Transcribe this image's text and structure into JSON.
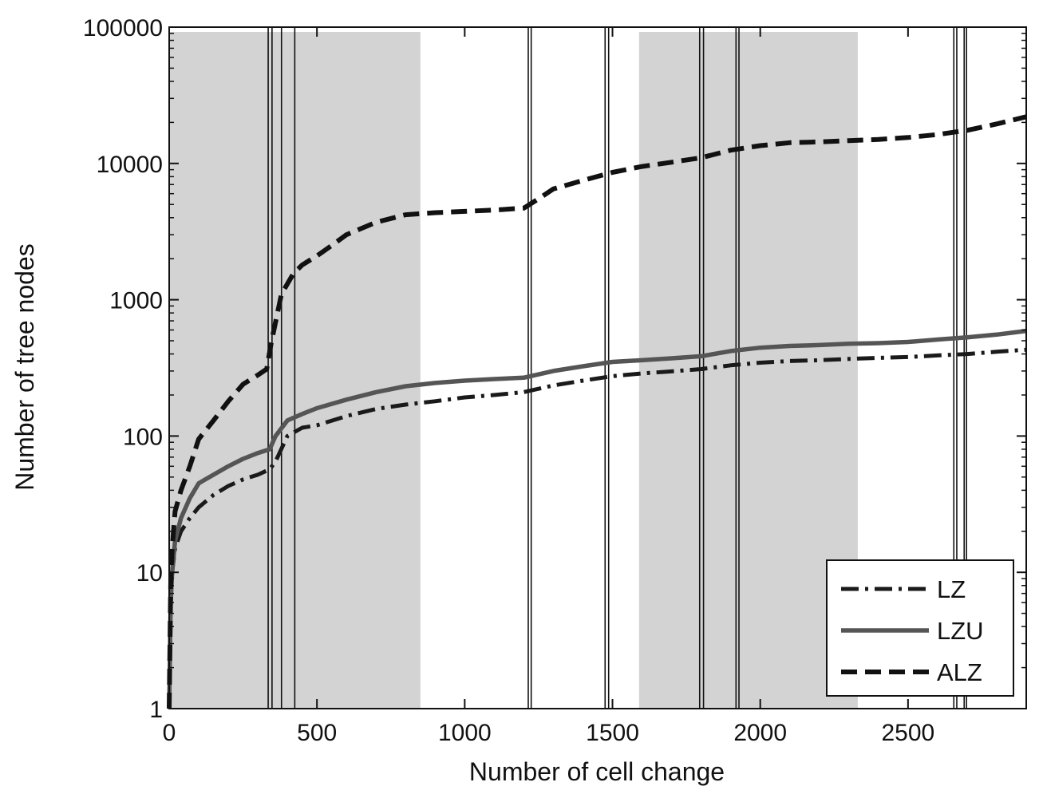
{
  "chart_data": {
    "type": "line",
    "title": "",
    "xlabel": "Number of cell change",
    "ylabel": "Number of tree nodes",
    "xlim": [
      0,
      2900
    ],
    "ylim": [
      1,
      100000
    ],
    "yscale": "log",
    "grid": false,
    "legend_position": "bottom-right",
    "x_ticks": [
      0,
      500,
      1000,
      1500,
      2000,
      2500
    ],
    "x_tick_labels": [
      "0",
      "500",
      "1000",
      "1500",
      "2000",
      "2500"
    ],
    "y_ticks": [
      1,
      10,
      100,
      1000,
      10000,
      100000
    ],
    "y_tick_labels": [
      "1",
      "10",
      "100",
      "1000",
      "10000",
      "100000"
    ],
    "shaded_regions": [
      {
        "x_start": 0,
        "x_end": 850,
        "color": "#d3d3d3"
      },
      {
        "x_start": 1590,
        "x_end": 2330,
        "color": "#d3d3d3"
      }
    ],
    "vertical_lines": [
      335,
      348,
      380,
      425,
      1215,
      1225,
      1475,
      1487,
      1795,
      1808,
      1918,
      1928,
      2655,
      2665,
      2690,
      2698
    ],
    "series": [
      {
        "name": "LZ",
        "style": "dash-dot",
        "color": "#1a1a1a",
        "x": [
          0,
          5,
          10,
          20,
          40,
          70,
          100,
          150,
          200,
          250,
          300,
          340,
          360,
          400,
          450,
          500,
          600,
          700,
          800,
          900,
          1000,
          1100,
          1200,
          1300,
          1400,
          1500,
          1600,
          1700,
          1800,
          1900,
          2000,
          2100,
          2200,
          2300,
          2400,
          2500,
          2600,
          2700,
          2800,
          2900
        ],
        "values": [
          1,
          6,
          10,
          15,
          20,
          25,
          30,
          37,
          43,
          48,
          52,
          57,
          65,
          100,
          115,
          120,
          140,
          158,
          170,
          180,
          192,
          200,
          210,
          235,
          255,
          275,
          288,
          298,
          310,
          330,
          345,
          355,
          360,
          368,
          375,
          380,
          390,
          400,
          415,
          430
        ]
      },
      {
        "name": "LZU",
        "style": "solid",
        "color": "#555555",
        "x": [
          0,
          5,
          10,
          20,
          40,
          70,
          100,
          150,
          200,
          250,
          300,
          340,
          360,
          400,
          450,
          500,
          600,
          700,
          800,
          900,
          1000,
          1100,
          1200,
          1300,
          1400,
          1500,
          1600,
          1700,
          1800,
          1900,
          2000,
          2100,
          2200,
          2300,
          2400,
          2500,
          2600,
          2700,
          2800,
          2900
        ],
        "values": [
          1,
          6,
          10,
          17,
          25,
          35,
          45,
          52,
          60,
          68,
          75,
          80,
          100,
          130,
          145,
          160,
          185,
          210,
          232,
          245,
          255,
          262,
          268,
          300,
          325,
          350,
          360,
          372,
          385,
          420,
          445,
          458,
          465,
          475,
          480,
          490,
          510,
          530,
          555,
          590
        ]
      },
      {
        "name": "ALZ",
        "style": "dashed",
        "color": "#111111",
        "x": [
          0,
          5,
          10,
          20,
          40,
          70,
          100,
          150,
          200,
          250,
          300,
          330,
          345,
          380,
          420,
          450,
          500,
          550,
          600,
          700,
          800,
          900,
          1000,
          1100,
          1200,
          1250,
          1300,
          1400,
          1500,
          1600,
          1700,
          1800,
          1900,
          2000,
          2100,
          2200,
          2300,
          2400,
          2500,
          2600,
          2700,
          2800,
          2900
        ],
        "values": [
          1,
          8,
          15,
          28,
          40,
          60,
          95,
          130,
          180,
          240,
          280,
          310,
          480,
          1100,
          1550,
          1800,
          2100,
          2500,
          3000,
          3700,
          4200,
          4350,
          4450,
          4550,
          4700,
          5500,
          6500,
          7500,
          8600,
          9500,
          10200,
          11000,
          12500,
          13500,
          14200,
          14400,
          14700,
          15000,
          15500,
          16300,
          17500,
          19500,
          22000
        ]
      }
    ]
  }
}
